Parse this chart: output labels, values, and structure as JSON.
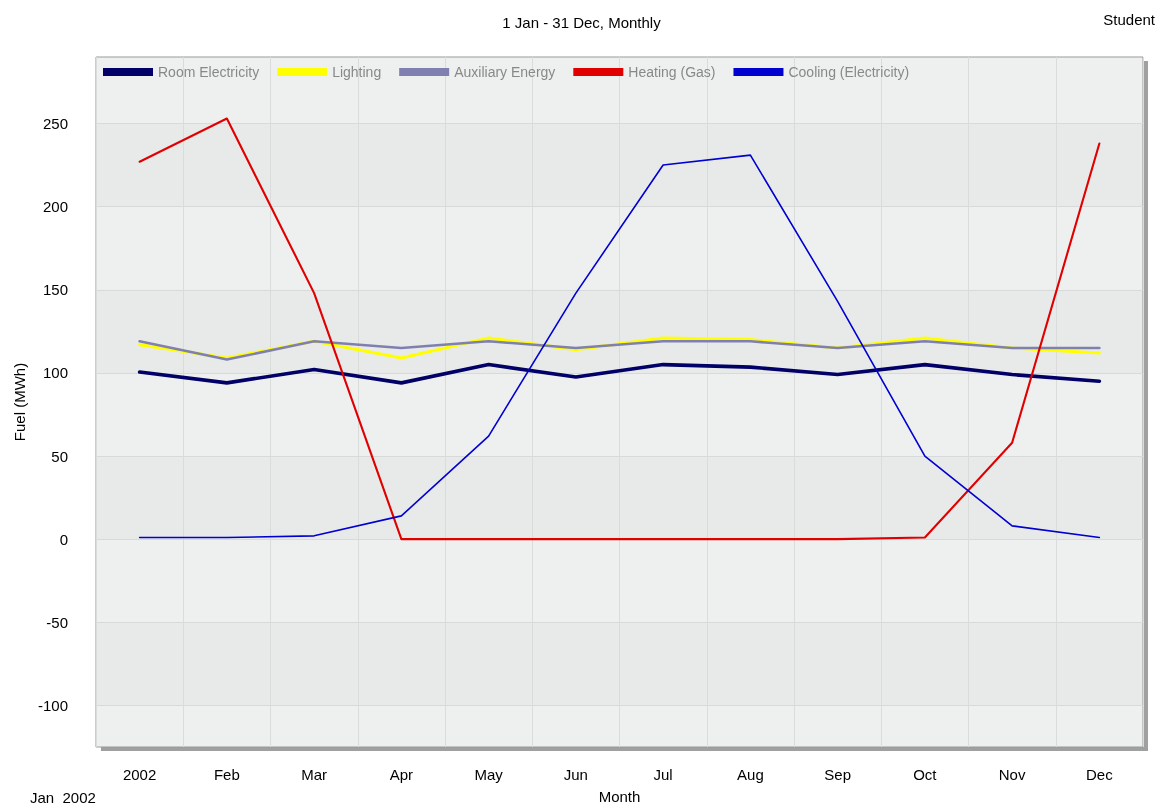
{
  "chart_data": {
    "type": "line",
    "title": "1 Jan - 31 Dec, Monthly",
    "xlabel": "Month",
    "ylabel": "Fuel (MWh)",
    "annotations": [
      "Student",
      "Jan  2002"
    ],
    "categories": [
      "2002",
      "Feb",
      "Mar",
      "Apr",
      "May",
      "Jun",
      "Jul",
      "Aug",
      "Sep",
      "Oct",
      "Nov",
      "Dec"
    ],
    "series": [
      {
        "name": "Room Electricity",
        "color": "#000066",
        "values": [
          100.5,
          94,
          102,
          94,
          105,
          97.5,
          105,
          103.5,
          99,
          105,
          99,
          95
        ]
      },
      {
        "name": "Lighting",
        "color": "#ffff00",
        "values": [
          117,
          109,
          119,
          109,
          121,
          114,
          121,
          120,
          115,
          121,
          115,
          112
        ]
      },
      {
        "name": "Auxiliary Energy",
        "color": "#8080b0",
        "values": [
          119,
          108,
          119,
          115,
          119,
          115,
          119,
          119,
          115,
          119,
          115,
          115
        ]
      },
      {
        "name": "Heating (Gas)",
        "color": "#e00000",
        "values": [
          227,
          253,
          148,
          0,
          0,
          0,
          0,
          0,
          0,
          1,
          58,
          238
        ]
      },
      {
        "name": "Cooling (Electricity)",
        "color": "#0000d0",
        "values": [
          1,
          1,
          2,
          14,
          62,
          148,
          225,
          231,
          143,
          50,
          8,
          1
        ]
      }
    ],
    "ylim": [
      -125,
      290
    ],
    "yticks": [
      -100,
      -50,
      0,
      50,
      100,
      150,
      200,
      250
    ],
    "grid": true,
    "legend": "top left",
    "marker": "none",
    "line_style": "solid"
  }
}
